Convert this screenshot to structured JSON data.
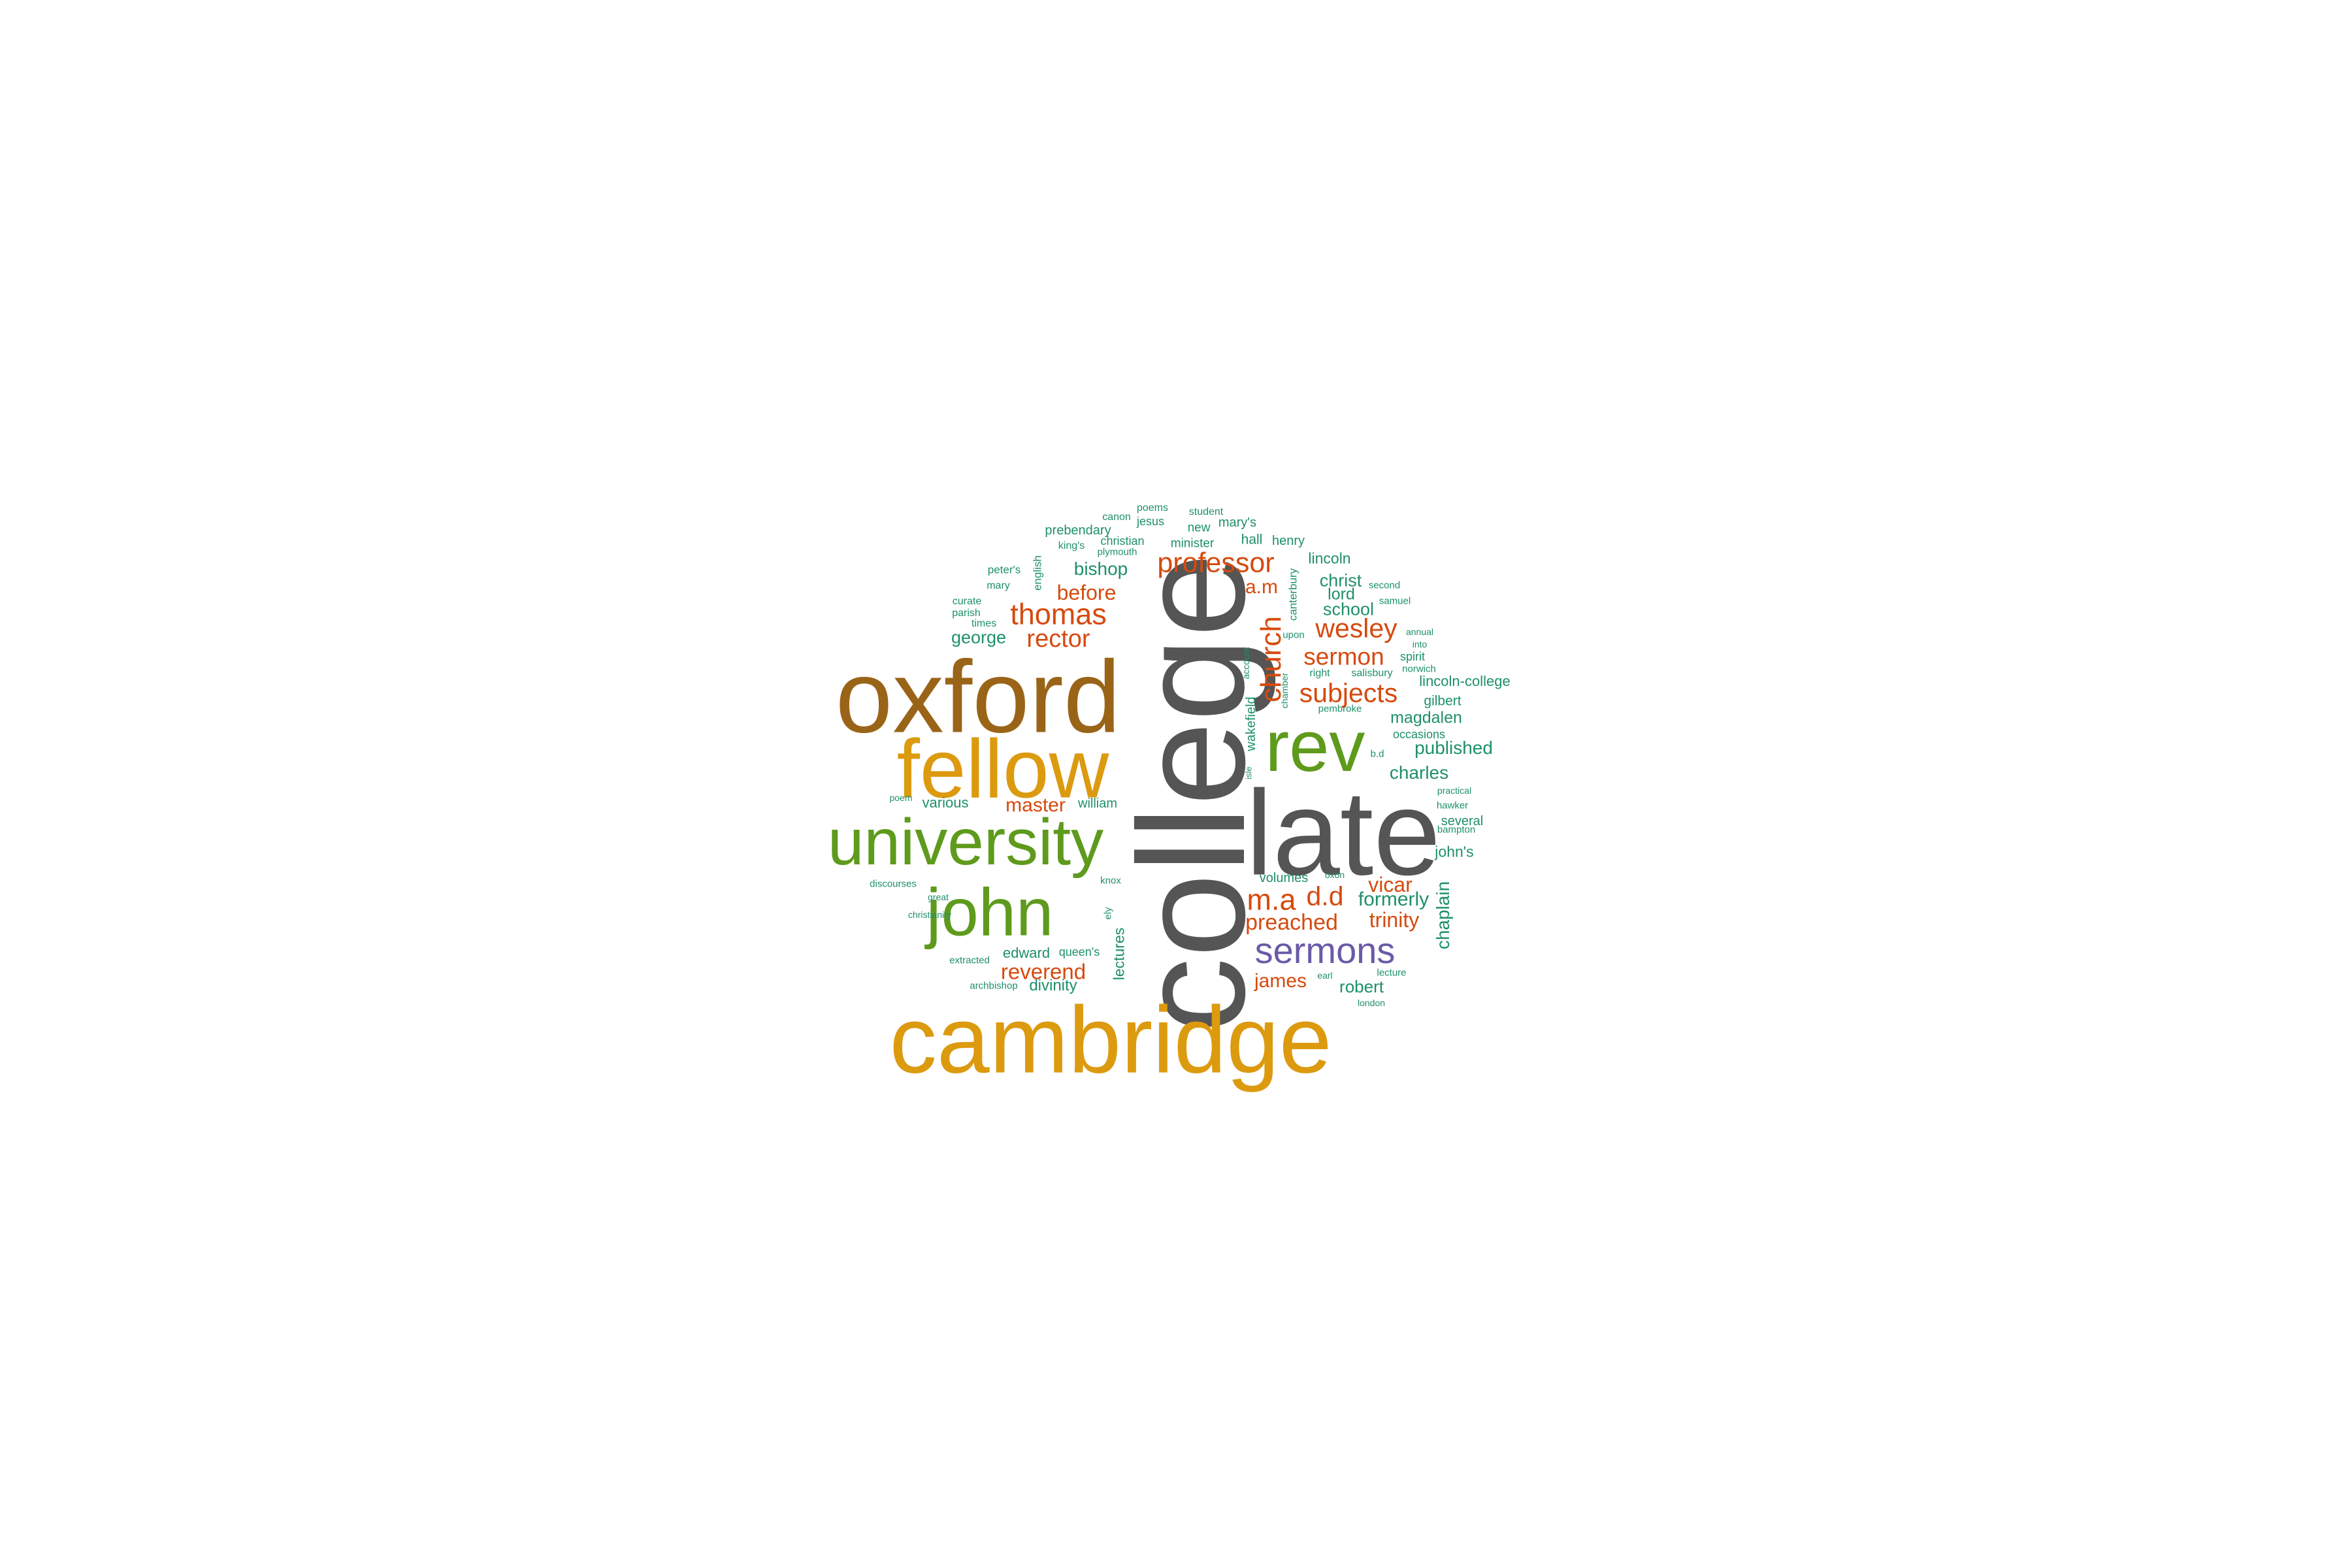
{
  "colors": {
    "gray": "#555555",
    "brown": "#9a6418",
    "gold": "#dc9a0f",
    "green": "#5e9a1c",
    "orange": "#d64a0e",
    "purple": "#6a5aa8",
    "teal": "#1e8f6c"
  },
  "words": [
    {
      "id": "college",
      "text": "college"
    },
    {
      "id": "late",
      "text": "late"
    },
    {
      "id": "oxford",
      "text": "oxford"
    },
    {
      "id": "cambridge",
      "text": "cambridge"
    },
    {
      "id": "fellow",
      "text": "fellow"
    },
    {
      "id": "university",
      "text": "university"
    },
    {
      "id": "rev",
      "text": "rev"
    },
    {
      "id": "john",
      "text": "john"
    },
    {
      "id": "sermons",
      "text": "sermons"
    },
    {
      "id": "church",
      "text": "church"
    },
    {
      "id": "professor",
      "text": "professor"
    },
    {
      "id": "thomas",
      "text": "thomas"
    },
    {
      "id": "ma",
      "text": "m.a"
    },
    {
      "id": "dd",
      "text": "d.d"
    },
    {
      "id": "wesley",
      "text": "wesley"
    },
    {
      "id": "subjects",
      "text": "subjects"
    },
    {
      "id": "sermon",
      "text": "sermon"
    },
    {
      "id": "rector",
      "text": "rector"
    },
    {
      "id": "preached",
      "text": "preached"
    },
    {
      "id": "reverend",
      "text": "reverend"
    },
    {
      "id": "trinity",
      "text": "trinity"
    },
    {
      "id": "vicar",
      "text": "vicar"
    },
    {
      "id": "before",
      "text": "before"
    },
    {
      "id": "master",
      "text": "master"
    },
    {
      "id": "james",
      "text": "james"
    },
    {
      "id": "am",
      "text": "a.m"
    },
    {
      "id": "formerly",
      "text": "formerly"
    },
    {
      "id": "chaplain",
      "text": "chaplain"
    },
    {
      "id": "bishop",
      "text": "bishop"
    },
    {
      "id": "published",
      "text": "published"
    },
    {
      "id": "charles",
      "text": "charles"
    },
    {
      "id": "school",
      "text": "school"
    },
    {
      "id": "christ",
      "text": "christ"
    },
    {
      "id": "lord",
      "text": "lord"
    },
    {
      "id": "george",
      "text": "george"
    },
    {
      "id": "robert",
      "text": "robert"
    },
    {
      "id": "magdalen",
      "text": "magdalen"
    },
    {
      "id": "lectures",
      "text": "lectures"
    },
    {
      "id": "lincoln",
      "text": "lincoln"
    },
    {
      "id": "lincoln_college",
      "text": "lincoln-college"
    },
    {
      "id": "divinity",
      "text": "divinity"
    },
    {
      "id": "edward",
      "text": "edward"
    },
    {
      "id": "various",
      "text": "various"
    },
    {
      "id": "william",
      "text": "william"
    },
    {
      "id": "johns",
      "text": "john's"
    },
    {
      "id": "gilbert",
      "text": "gilbert"
    },
    {
      "id": "wakefield",
      "text": "wakefield"
    },
    {
      "id": "several",
      "text": "several"
    },
    {
      "id": "volumes",
      "text": "volumes"
    },
    {
      "id": "hall",
      "text": "hall"
    },
    {
      "id": "henry",
      "text": "henry"
    },
    {
      "id": "prebendary",
      "text": "prebendary"
    },
    {
      "id": "minister",
      "text": "minister"
    },
    {
      "id": "marys",
      "text": "mary's"
    },
    {
      "id": "new",
      "text": "new"
    },
    {
      "id": "jesus",
      "text": "jesus"
    },
    {
      "id": "christian",
      "text": "christian"
    },
    {
      "id": "canterbury",
      "text": "canterbury"
    },
    {
      "id": "spirit",
      "text": "spirit"
    },
    {
      "id": "queens",
      "text": "queen's"
    },
    {
      "id": "english",
      "text": "english"
    },
    {
      "id": "peters",
      "text": "peter's"
    },
    {
      "id": "occasions",
      "text": "occasions"
    },
    {
      "id": "student",
      "text": "student"
    },
    {
      "id": "canon",
      "text": "canon"
    },
    {
      "id": "poems",
      "text": "poems"
    },
    {
      "id": "kings",
      "text": "king's"
    },
    {
      "id": "plymouth",
      "text": "plymouth"
    },
    {
      "id": "mary",
      "text": "mary"
    },
    {
      "id": "curate",
      "text": "curate"
    },
    {
      "id": "parish",
      "text": "parish"
    },
    {
      "id": "times",
      "text": "times"
    },
    {
      "id": "upon",
      "text": "upon"
    },
    {
      "id": "account",
      "text": "account"
    },
    {
      "id": "chamber",
      "text": "chamber"
    },
    {
      "id": "right",
      "text": "right"
    },
    {
      "id": "salisbury",
      "text": "salisbury"
    },
    {
      "id": "norwich",
      "text": "norwich"
    },
    {
      "id": "second",
      "text": "second"
    },
    {
      "id": "samuel",
      "text": "samuel"
    },
    {
      "id": "annual",
      "text": "annual"
    },
    {
      "id": "into",
      "text": "into"
    },
    {
      "id": "pembroke",
      "text": "pembroke"
    },
    {
      "id": "bd",
      "text": "b.d"
    },
    {
      "id": "isle",
      "text": "isle"
    },
    {
      "id": "practical",
      "text": "practical"
    },
    {
      "id": "hawker",
      "text": "hawker"
    },
    {
      "id": "bampton",
      "text": "bampton"
    },
    {
      "id": "poem",
      "text": "poem"
    },
    {
      "id": "discourses",
      "text": "discourses"
    },
    {
      "id": "great",
      "text": "great"
    },
    {
      "id": "christianity",
      "text": "christianity"
    },
    {
      "id": "knox",
      "text": "knox"
    },
    {
      "id": "ely",
      "text": "ely"
    },
    {
      "id": "oxon",
      "text": "oxon"
    },
    {
      "id": "extracted",
      "text": "extracted"
    },
    {
      "id": "archbishop",
      "text": "archbishop"
    },
    {
      "id": "earl",
      "text": "earl"
    },
    {
      "id": "lecture",
      "text": "lecture"
    },
    {
      "id": "london",
      "text": "london"
    }
  ]
}
